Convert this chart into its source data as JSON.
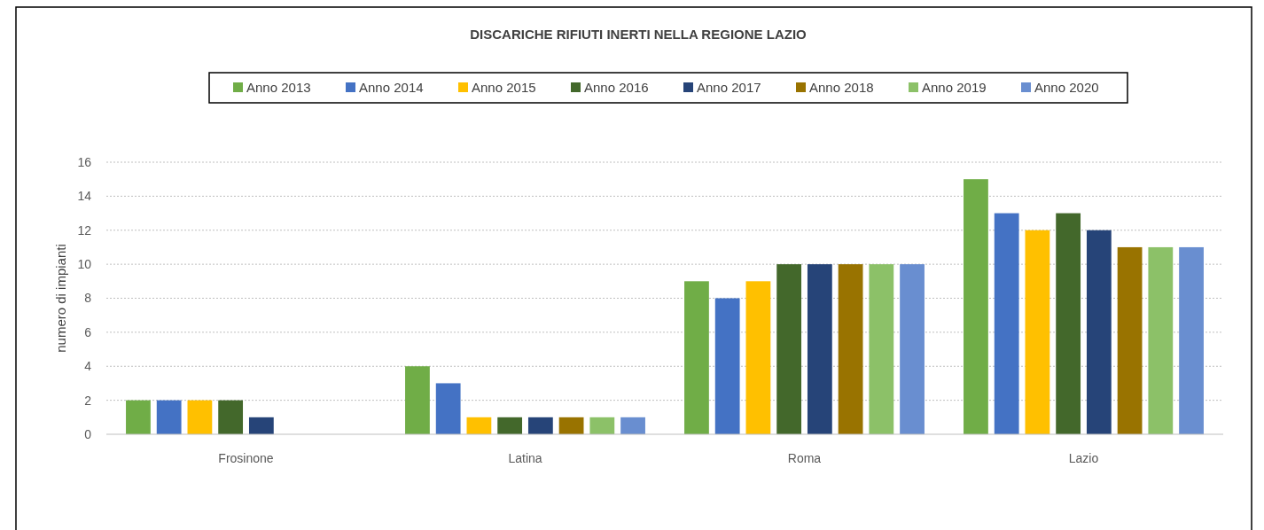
{
  "chart_data": {
    "type": "bar",
    "title": "DISCARICHE RIFIUTI INERTI NELLA REGIONE LAZIO",
    "ylabel": "numero di impianti",
    "categories": [
      "Frosinone",
      "Latina",
      "Roma",
      "Lazio"
    ],
    "series": [
      {
        "name": "Anno 2013",
        "color": "#70ad47",
        "values": [
          2,
          4,
          9,
          15
        ]
      },
      {
        "name": "Anno 2014",
        "color": "#4472c4",
        "values": [
          2,
          3,
          8,
          13
        ]
      },
      {
        "name": "Anno 2015",
        "color": "#ffc000",
        "values": [
          2,
          1,
          9,
          12
        ]
      },
      {
        "name": "Anno 2016",
        "color": "#43682b",
        "values": [
          2,
          1,
          10,
          13
        ]
      },
      {
        "name": "Anno 2017",
        "color": "#264478",
        "values": [
          1,
          1,
          10,
          12
        ]
      },
      {
        "name": "Anno 2018",
        "color": "#997300",
        "values": [
          0,
          1,
          10,
          11
        ]
      },
      {
        "name": "Anno 2019",
        "color": "#8cc168",
        "values": [
          0,
          1,
          10,
          11
        ]
      },
      {
        "name": "Anno 2020",
        "color": "#698ed0",
        "values": [
          0,
          1,
          10,
          11
        ]
      }
    ],
    "ylim": [
      0,
      16
    ],
    "yticks": [
      0,
      2,
      4,
      6,
      8,
      10,
      12,
      14,
      16
    ],
    "grid": "y",
    "legend": "top"
  }
}
